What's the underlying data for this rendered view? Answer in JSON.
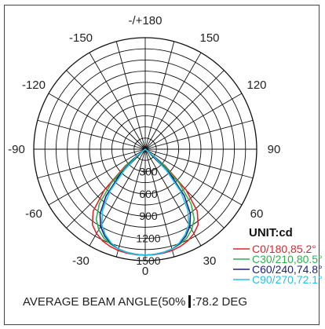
{
  "chart_data": {
    "type": "polar",
    "unit_label": "UNIT:cd",
    "angle_labels": [
      {
        "angle": 180,
        "text": "-/+180"
      },
      {
        "angle": -150,
        "text": "-150"
      },
      {
        "angle": 150,
        "text": "150"
      },
      {
        "angle": -120,
        "text": "-120"
      },
      {
        "angle": 120,
        "text": "120"
      },
      {
        "angle": -90,
        "text": "-90"
      },
      {
        "angle": 90,
        "text": "90"
      },
      {
        "angle": -60,
        "text": "-60"
      },
      {
        "angle": 60,
        "text": "60"
      },
      {
        "angle": -30,
        "text": "-30"
      },
      {
        "angle": 30,
        "text": "30"
      },
      {
        "angle": 0,
        "text": "0"
      }
    ],
    "radial_ticks": [
      300,
      600,
      900,
      1200,
      1500
    ],
    "radial_max": 1500,
    "series": [
      {
        "name": "C0/180,85.2°",
        "color": "#e0242b",
        "angles": [
          -60,
          -50,
          -45,
          -40,
          -35,
          -30,
          -25,
          -20,
          -15,
          -10,
          -5,
          0,
          5,
          10,
          15,
          20,
          25,
          30,
          35,
          40,
          45,
          50,
          60
        ],
        "values": [
          0,
          350,
          780,
          1090,
          1240,
          1310,
          1360,
          1390,
          1410,
          1420,
          1425,
          1425,
          1425,
          1420,
          1410,
          1390,
          1360,
          1310,
          1240,
          1090,
          780,
          350,
          0
        ]
      },
      {
        "name": "C30/210,80.5°",
        "color": "#2bb34a",
        "angles": [
          -60,
          -50,
          -45,
          -40,
          -35,
          -30,
          -25,
          -20,
          -15,
          -10,
          -5,
          0,
          5,
          10,
          15,
          20,
          25,
          30,
          35,
          40,
          45,
          50,
          60
        ],
        "values": [
          0,
          300,
          650,
          960,
          1150,
          1250,
          1320,
          1360,
          1390,
          1410,
          1420,
          1425,
          1420,
          1410,
          1390,
          1360,
          1320,
          1250,
          1150,
          960,
          650,
          300,
          0
        ]
      },
      {
        "name": "C60/240,74.8°",
        "color": "#1a237e",
        "angles": [
          -60,
          -50,
          -45,
          -40,
          -35,
          -30,
          -25,
          -20,
          -15,
          -10,
          -5,
          0,
          5,
          10,
          15,
          20,
          25,
          30,
          35,
          40,
          45,
          50,
          60
        ],
        "values": [
          0,
          200,
          480,
          820,
          1060,
          1200,
          1290,
          1350,
          1390,
          1410,
          1420,
          1425,
          1420,
          1410,
          1390,
          1350,
          1290,
          1200,
          1060,
          820,
          480,
          200,
          0
        ]
      },
      {
        "name": "C90/270,72.1°",
        "color": "#22c3e8",
        "angles": [
          -60,
          -50,
          -45,
          -40,
          -35,
          -30,
          -25,
          -20,
          -15,
          -10,
          -5,
          0,
          5,
          10,
          15,
          20,
          25,
          30,
          35,
          40,
          45,
          50,
          60
        ],
        "values": [
          0,
          150,
          400,
          740,
          1000,
          1170,
          1270,
          1340,
          1390,
          1410,
          1420,
          1425,
          1420,
          1410,
          1390,
          1340,
          1270,
          1170,
          1000,
          740,
          400,
          150,
          0
        ]
      }
    ],
    "footer": "AVERAGE BEAM ANGLE(50%",
    "footer_value": ":78.2 DEG"
  }
}
